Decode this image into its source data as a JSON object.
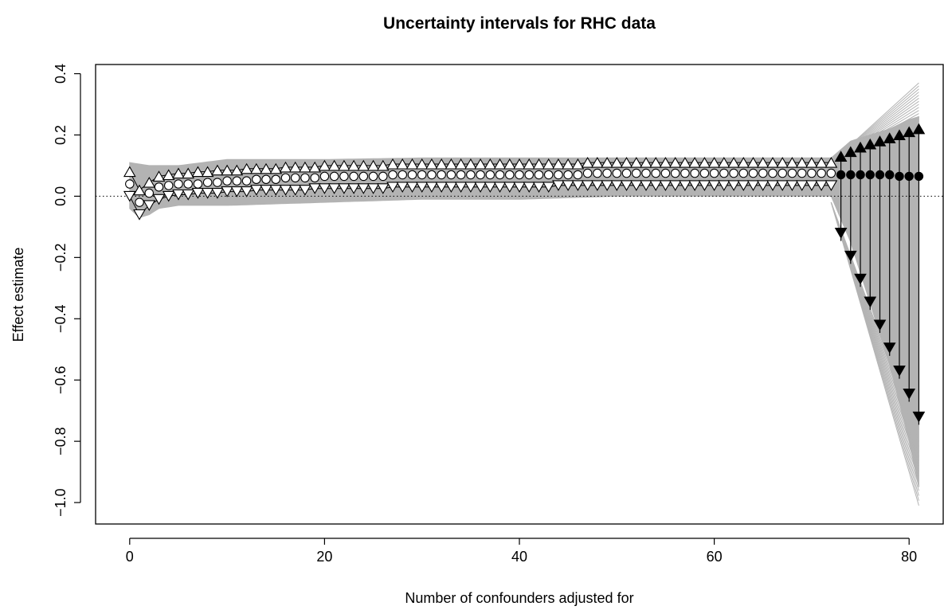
{
  "chart_data": {
    "type": "scatter",
    "title": "Uncertainty intervals for RHC data",
    "xlabel": "Number of confounders adjusted for",
    "ylabel": "Effect estimate",
    "xlim": [
      -3.5,
      83.5
    ],
    "ylim": [
      -1.07,
      0.43
    ],
    "x_ticks": [
      0,
      20,
      40,
      60,
      80
    ],
    "x_tick_labels": [
      "0",
      "20",
      "40",
      "60",
      "80"
    ],
    "y_ticks": [
      0.4,
      0.2,
      0.0,
      -0.2,
      -0.4,
      -0.6,
      -0.8,
      -1.0
    ],
    "y_tick_labels": [
      "0.4",
      "0.2",
      "0.0",
      "−0.2",
      "−0.4",
      "−0.6",
      "−0.8",
      "−1.0"
    ],
    "reference_line_y": 0,
    "colors": {
      "band": "#b3b3b3",
      "marker": "#000000",
      "background": "#ffffff"
    },
    "series": [
      {
        "name": "",
        "marker": "open-circle",
        "x": [
          0,
          1,
          2,
          3,
          4,
          5,
          6,
          7,
          8,
          9,
          10,
          11,
          12,
          13,
          14,
          15,
          16,
          17,
          18,
          19,
          20,
          21,
          22,
          23,
          24,
          25,
          26,
          27,
          28,
          29,
          30,
          31,
          32,
          33,
          34,
          35,
          36,
          37,
          38,
          39,
          40,
          41,
          42,
          43,
          44,
          45,
          46,
          47,
          48,
          49,
          50,
          51,
          52,
          53,
          54,
          55,
          56,
          57,
          58,
          59,
          60,
          61,
          62,
          63,
          64,
          65,
          66,
          67,
          68,
          69,
          70,
          71,
          72
        ],
        "values": [
          0.04,
          -0.02,
          0.01,
          0.03,
          0.035,
          0.04,
          0.04,
          0.04,
          0.045,
          0.045,
          0.05,
          0.05,
          0.05,
          0.055,
          0.055,
          0.055,
          0.06,
          0.06,
          0.06,
          0.06,
          0.065,
          0.065,
          0.065,
          0.065,
          0.065,
          0.065,
          0.065,
          0.07,
          0.07,
          0.07,
          0.07,
          0.07,
          0.07,
          0.07,
          0.07,
          0.07,
          0.07,
          0.07,
          0.07,
          0.07,
          0.07,
          0.07,
          0.07,
          0.07,
          0.07,
          0.07,
          0.07,
          0.075,
          0.075,
          0.075,
          0.075,
          0.075,
          0.075,
          0.075,
          0.075,
          0.075,
          0.075,
          0.075,
          0.075,
          0.075,
          0.075,
          0.075,
          0.075,
          0.075,
          0.075,
          0.075,
          0.075,
          0.075,
          0.075,
          0.075,
          0.075,
          0.075,
          0.075
        ]
      },
      {
        "name": "",
        "marker": "open-triangle-up",
        "x": [
          0,
          1,
          2,
          3,
          4,
          5,
          6,
          7,
          8,
          9,
          10,
          11,
          12,
          13,
          14,
          15,
          16,
          17,
          18,
          19,
          20,
          21,
          22,
          23,
          24,
          25,
          26,
          27,
          28,
          29,
          30,
          31,
          32,
          33,
          34,
          35,
          36,
          37,
          38,
          39,
          40,
          41,
          42,
          43,
          44,
          45,
          46,
          47,
          48,
          49,
          50,
          51,
          52,
          53,
          54,
          55,
          56,
          57,
          58,
          59,
          60,
          61,
          62,
          63,
          64,
          65,
          66,
          67,
          68,
          69,
          70,
          71,
          72
        ],
        "values": [
          0.08,
          0.02,
          0.045,
          0.065,
          0.07,
          0.075,
          0.075,
          0.08,
          0.08,
          0.085,
          0.085,
          0.085,
          0.09,
          0.09,
          0.09,
          0.09,
          0.095,
          0.095,
          0.095,
          0.095,
          0.1,
          0.1,
          0.1,
          0.1,
          0.1,
          0.1,
          0.1,
          0.105,
          0.105,
          0.105,
          0.105,
          0.105,
          0.105,
          0.105,
          0.105,
          0.105,
          0.105,
          0.105,
          0.105,
          0.105,
          0.105,
          0.105,
          0.105,
          0.105,
          0.105,
          0.105,
          0.105,
          0.11,
          0.11,
          0.11,
          0.11,
          0.11,
          0.11,
          0.11,
          0.11,
          0.11,
          0.11,
          0.11,
          0.11,
          0.11,
          0.11,
          0.11,
          0.11,
          0.11,
          0.11,
          0.11,
          0.11,
          0.11,
          0.11,
          0.11,
          0.11,
          0.11,
          0.11
        ]
      },
      {
        "name": "",
        "marker": "open-triangle-down",
        "x": [
          0,
          1,
          2,
          3,
          4,
          5,
          6,
          7,
          8,
          9,
          10,
          11,
          12,
          13,
          14,
          15,
          16,
          17,
          18,
          19,
          20,
          21,
          22,
          23,
          24,
          25,
          26,
          27,
          28,
          29,
          30,
          31,
          32,
          33,
          34,
          35,
          36,
          37,
          38,
          39,
          40,
          41,
          42,
          43,
          44,
          45,
          46,
          47,
          48,
          49,
          50,
          51,
          52,
          53,
          54,
          55,
          56,
          57,
          58,
          59,
          60,
          61,
          62,
          63,
          64,
          65,
          66,
          67,
          68,
          69,
          70,
          71,
          72
        ],
        "values": [
          0.0,
          -0.06,
          -0.03,
          -0.01,
          0.0,
          0.005,
          0.005,
          0.01,
          0.01,
          0.01,
          0.015,
          0.015,
          0.015,
          0.02,
          0.02,
          0.02,
          0.02,
          0.02,
          0.02,
          0.025,
          0.025,
          0.025,
          0.025,
          0.025,
          0.025,
          0.025,
          0.025,
          0.03,
          0.03,
          0.03,
          0.03,
          0.03,
          0.03,
          0.03,
          0.03,
          0.03,
          0.03,
          0.03,
          0.03,
          0.03,
          0.03,
          0.03,
          0.03,
          0.03,
          0.035,
          0.035,
          0.035,
          0.035,
          0.035,
          0.035,
          0.035,
          0.035,
          0.035,
          0.035,
          0.035,
          0.035,
          0.035,
          0.035,
          0.035,
          0.035,
          0.035,
          0.035,
          0.035,
          0.035,
          0.035,
          0.035,
          0.035,
          0.035,
          0.035,
          0.035,
          0.035,
          0.035,
          0.035
        ]
      },
      {
        "name": "",
        "marker": "filled-circle",
        "x": [
          73,
          74,
          75,
          76,
          77,
          78,
          79,
          80,
          81
        ],
        "values": [
          0.07,
          0.07,
          0.07,
          0.07,
          0.07,
          0.07,
          0.065,
          0.065,
          0.065
        ]
      },
      {
        "name": "",
        "marker": "filled-triangle-up",
        "x": [
          73,
          74,
          75,
          76,
          77,
          78,
          79,
          80,
          81
        ],
        "values": [
          0.13,
          0.145,
          0.16,
          0.17,
          0.18,
          0.19,
          0.2,
          0.21,
          0.22
        ]
      },
      {
        "name": "",
        "marker": "filled-triangle-down",
        "x": [
          73,
          74,
          75,
          76,
          77,
          78,
          79,
          80,
          81
        ],
        "values": [
          -0.12,
          -0.195,
          -0.27,
          -0.345,
          -0.42,
          -0.495,
          -0.57,
          -0.645,
          -0.72
        ]
      }
    ],
    "band_upper": {
      "x": [
        0,
        1,
        2,
        3,
        5,
        10,
        20,
        30,
        40,
        50,
        60,
        70,
        72,
        74,
        76,
        78,
        80,
        81
      ],
      "values": [
        0.11,
        0.105,
        0.1,
        0.1,
        0.1,
        0.12,
        0.12,
        0.125,
        0.125,
        0.125,
        0.125,
        0.125,
        0.125,
        0.18,
        0.2,
        0.22,
        0.25,
        0.26
      ]
    },
    "band_lower": {
      "x": [
        0,
        1,
        2,
        3,
        5,
        10,
        20,
        30,
        40,
        50,
        60,
        70,
        72,
        74,
        76,
        78,
        80,
        81
      ],
      "values": [
        -0.04,
        -0.07,
        -0.06,
        -0.04,
        -0.03,
        -0.03,
        -0.02,
        -0.01,
        -0.01,
        0.0,
        0.0,
        0.0,
        0.0,
        -0.15,
        -0.35,
        -0.55,
        -0.8,
        -0.95
      ]
    },
    "grey_paths_upper_extra": {
      "x": [
        72,
        81
      ],
      "values": [
        0.11,
        0.37
      ]
    },
    "grey_paths_lower_extra": {
      "x": [
        72,
        81
      ],
      "values": [
        -0.02,
        -1.01
      ]
    }
  }
}
